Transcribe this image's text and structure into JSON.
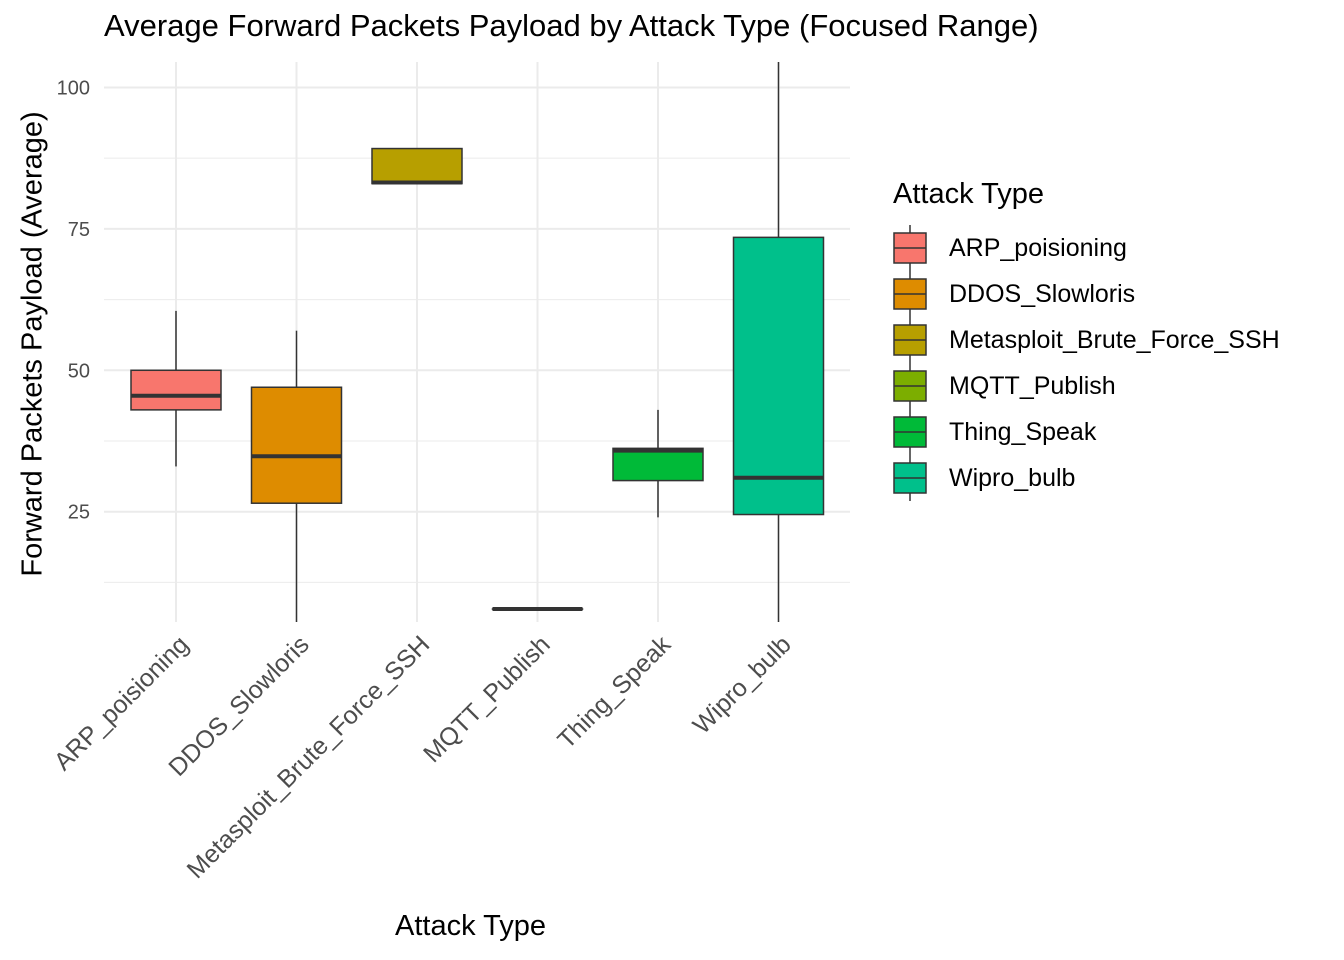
{
  "chart_data": {
    "type": "box",
    "title": "Average Forward Packets Payload by Attack Type (Focused Range)",
    "xlabel": "Attack Type",
    "ylabel": "Forward Packets Payload (Average)",
    "ylim": [
      5.5,
      104.5
    ],
    "yticks": [
      25,
      50,
      75,
      100
    ],
    "y_minor_ticks": [
      12.5,
      37.5,
      62.5,
      87.5
    ],
    "grid": true,
    "legend": {
      "title": "Attack Type",
      "position": "right"
    },
    "categories": [
      "ARP_poisioning",
      "DDOS_Slowloris",
      "Metasploit_Brute_Force_SSH",
      "MQTT_Publish",
      "Thing_Speak",
      "Wipro_bulb"
    ],
    "boxes": [
      {
        "name": "ARP_poisioning",
        "color": "#F8766D",
        "whisker_low": 33,
        "q1": 43,
        "median": 45.5,
        "q3": 50,
        "whisker_high": 60.5
      },
      {
        "name": "DDOS_Slowloris",
        "color": "#DE8C00",
        "whisker_low": 5.5,
        "q1": 26.5,
        "median": 34.8,
        "q3": 47,
        "whisker_high": 57
      },
      {
        "name": "Metasploit_Brute_Force_SSH",
        "color": "#B79F00",
        "whisker_low": 83,
        "q1": 83,
        "median": 83.2,
        "q3": 89.2,
        "whisker_high": 89.2
      },
      {
        "name": "MQTT_Publish",
        "color": "#7CAE00",
        "whisker_low": 7.8,
        "q1": 7.8,
        "median": 7.8,
        "q3": 7.8,
        "whisker_high": 7.8
      },
      {
        "name": "Thing_Speak",
        "color": "#00BA38",
        "whisker_low": 24,
        "q1": 30.5,
        "median": 35.8,
        "q3": 36.2,
        "whisker_high": 43
      },
      {
        "name": "Wipro_bulb",
        "color": "#00C08B",
        "whisker_low": 5.5,
        "q1": 24.5,
        "median": 31,
        "q3": 73.5,
        "whisker_high": 104.5
      }
    ]
  }
}
